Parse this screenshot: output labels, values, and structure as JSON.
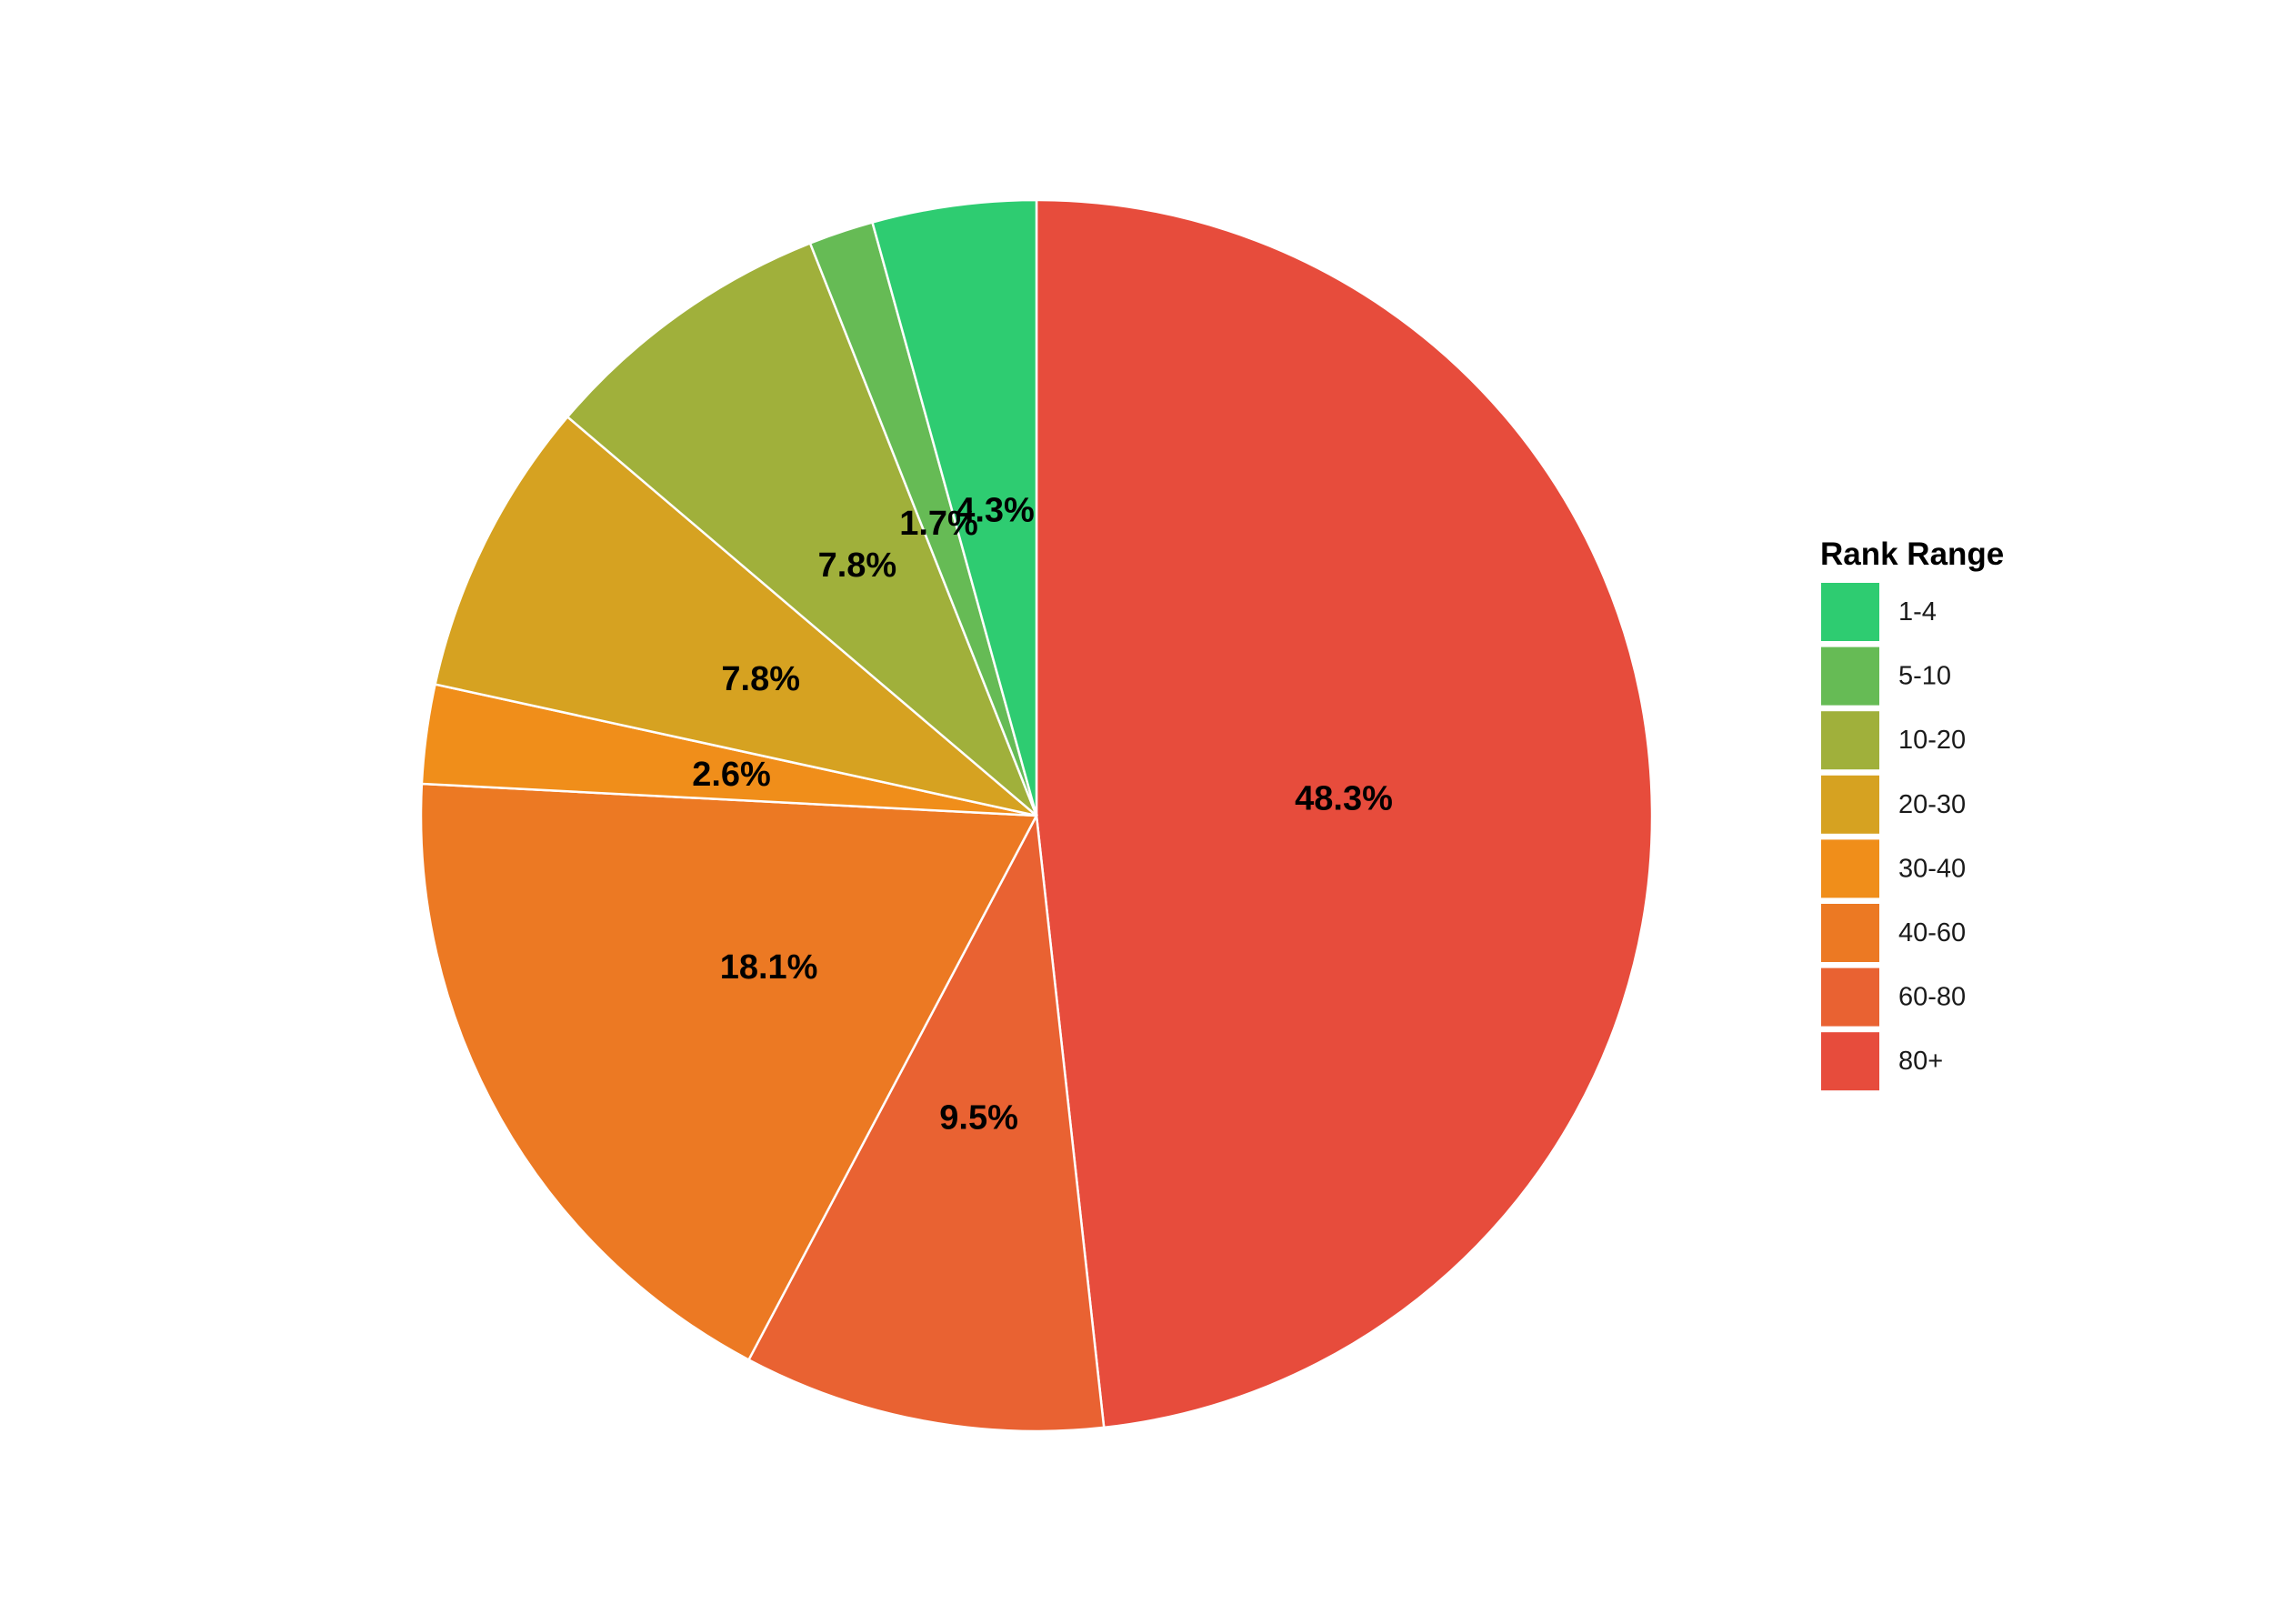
{
  "chart_data": {
    "type": "pie",
    "title": "",
    "legend": {
      "title": "Rank Range",
      "placement": "right"
    },
    "start": "top, clockwise",
    "slices": [
      {
        "label": "80+",
        "value": 48.3,
        "text": "48.3%",
        "color": "#e74c3c"
      },
      {
        "label": "60-80",
        "value": 9.5,
        "text": "9.5%",
        "color": "#e96232"
      },
      {
        "label": "40-60",
        "value": 18.1,
        "text": "18.1%",
        "color": "#ec7923"
      },
      {
        "label": "30-40",
        "value": 2.6,
        "text": "2.6%",
        "color": "#f08e1a"
      },
      {
        "label": "20-30",
        "value": 7.8,
        "text": "7.8%",
        "color": "#d6a221"
      },
      {
        "label": "10-20",
        "value": 7.8,
        "text": "7.8%",
        "color": "#a0b03b"
      },
      {
        "label": "5-10",
        "value": 1.7,
        "text": "1.7%",
        "color": "#66bb55"
      },
      {
        "label": "1-4",
        "value": 4.3,
        "text": "4.3%",
        "color": "#2ecc71"
      }
    ],
    "legend_order": [
      "1-4",
      "5-10",
      "10-20",
      "20-30",
      "30-40",
      "40-60",
      "60-80",
      "80+"
    ]
  }
}
